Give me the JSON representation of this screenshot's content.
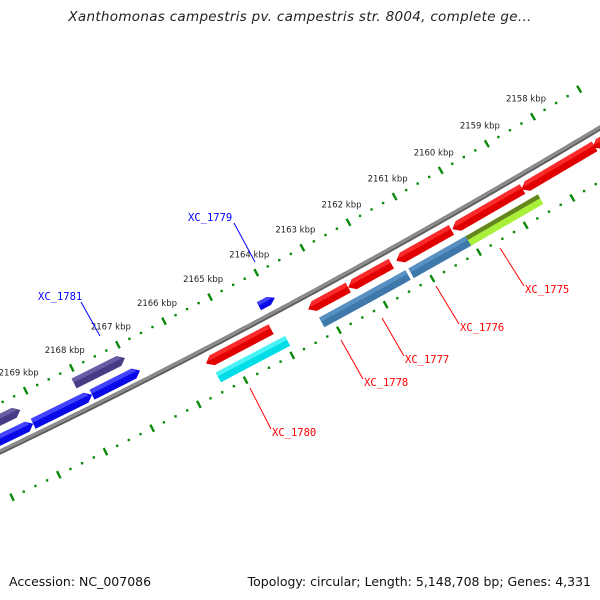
{
  "header": {
    "title": "Xanthomonas campestris pv. campestris str. 8004, complete ge..."
  },
  "footer": {
    "accession": "Accession: NC_007086",
    "summary": "Topology: circular; Length: 5,148,708 bp; Genes: 4,331"
  },
  "ruler": {
    "labels": [
      "2158 kbp",
      "2159 kbp",
      "2160 kbp",
      "2161 kbp",
      "2162 kbp",
      "2163 kbp",
      "2164 kbp",
      "2165 kbp",
      "2166 kbp",
      "2167 kbp",
      "2168 kbp",
      "2169 kbp"
    ],
    "color": "#0a8a0a"
  },
  "backbone_color": "#8c8c8c",
  "gene_labels": [
    {
      "text": "XC_1775",
      "color": "#ff0000"
    },
    {
      "text": "XC_1776",
      "color": "#ff0000"
    },
    {
      "text": "XC_1777",
      "color": "#ff0000"
    },
    {
      "text": "XC_1778",
      "color": "#ff0000"
    },
    {
      "text": "XC_1780",
      "color": "#ff0000"
    },
    {
      "text": "XC_1779",
      "color": "#0000ff"
    },
    {
      "text": "XC_1781",
      "color": "#0000ff"
    }
  ],
  "colors": {
    "blue": [
      "#4a4aff",
      "#0808e8"
    ],
    "purple": [
      "#6a62a8",
      "#463c86"
    ],
    "red": [
      "#ff3030",
      "#e00000"
    ],
    "cyan": [
      "#50f4f8",
      "#00dde6"
    ],
    "steelblue": [
      "#5a92c4",
      "#3f78aa"
    ],
    "olive": [
      "#5c7a1c",
      "#a8f03a"
    ],
    "teal": [
      "#30e8b0",
      "#00c890"
    ]
  }
}
